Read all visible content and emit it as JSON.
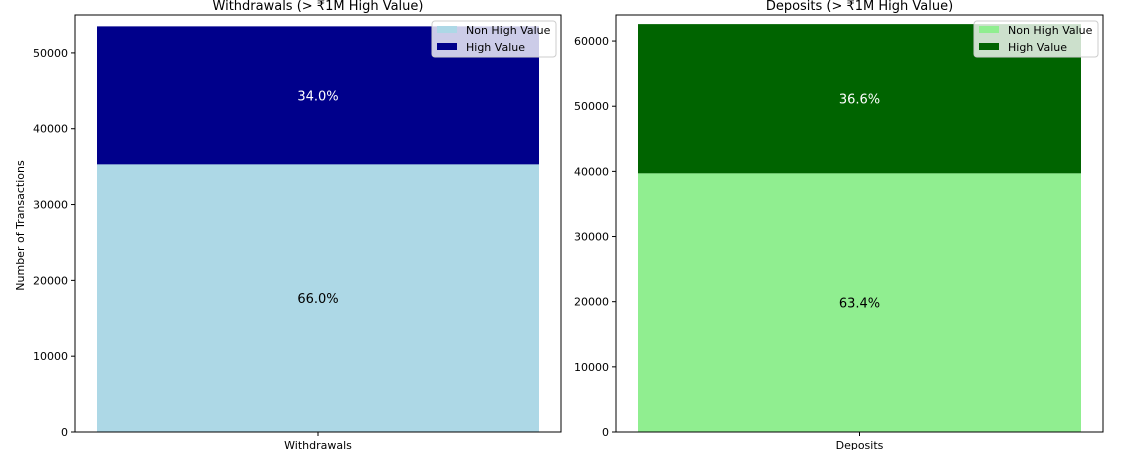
{
  "chart_data": [
    {
      "type": "bar",
      "stacked": true,
      "title": "Withdrawals (> ₹1M High Value)",
      "categories": [
        "Withdrawals"
      ],
      "xlabel": "",
      "ylabel": "Number of Transactions",
      "ylim": [
        0,
        55000
      ],
      "yticks": [
        0,
        10000,
        20000,
        30000,
        40000,
        50000
      ],
      "legend_position": "top-right",
      "grid": false,
      "series": [
        {
          "name": "Non High Value",
          "values": [
            35300
          ],
          "label": "66.0%",
          "color": "#add8e6",
          "label_color": "#000000"
        },
        {
          "name": "High Value",
          "values": [
            18200
          ],
          "label": "34.0%",
          "color": "#00008b",
          "label_color": "#ffffff"
        }
      ]
    },
    {
      "type": "bar",
      "stacked": true,
      "title": "Deposits (> ₹1M High Value)",
      "categories": [
        "Deposits"
      ],
      "xlabel": "",
      "ylabel": "",
      "ylim": [
        0,
        64000
      ],
      "yticks": [
        0,
        10000,
        20000,
        30000,
        40000,
        50000,
        60000
      ],
      "legend_position": "top-right",
      "grid": false,
      "series": [
        {
          "name": "Non High Value",
          "values": [
            39700
          ],
          "label": "63.4%",
          "color": "#90ee90",
          "label_color": "#000000"
        },
        {
          "name": "High Value",
          "values": [
            22900
          ],
          "label": "36.6%",
          "color": "#006400",
          "label_color": "#ffffff"
        }
      ]
    }
  ]
}
